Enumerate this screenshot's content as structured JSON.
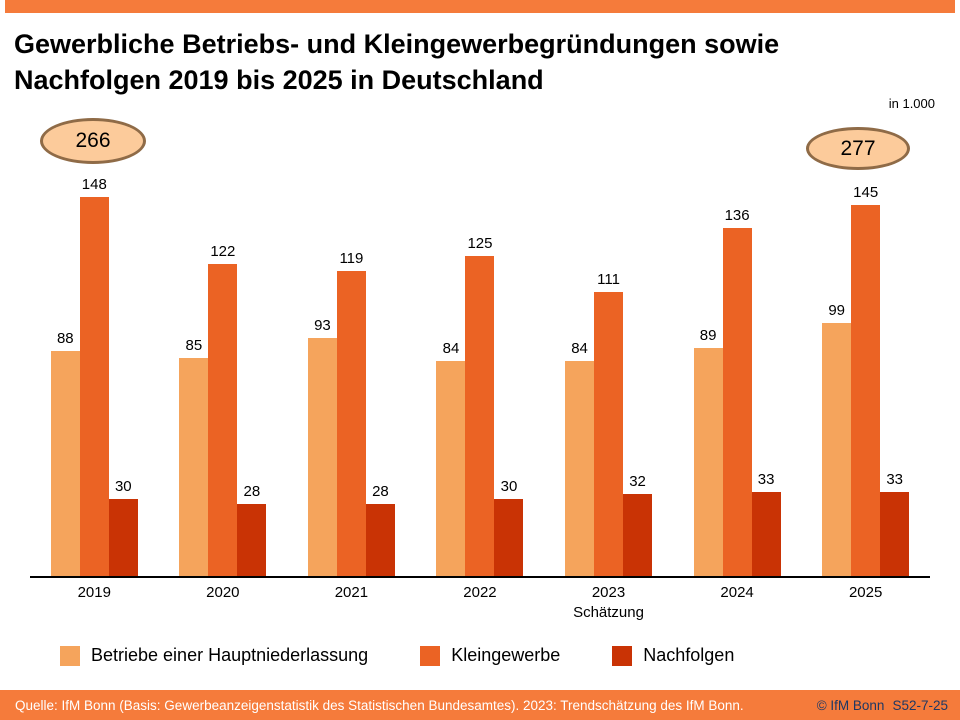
{
  "header": {
    "title_line1": "Gewerbliche Betriebs- und Kleingewerbegründungen sowie",
    "title_line2": "Nachfolgen 2019 bis 2025 in Deutschland",
    "unit_label": "in 1.000",
    "top_bar_color": "#F57B3B"
  },
  "badges": {
    "left_total": "266",
    "right_total": "277",
    "fill_color": "#FCCB9B",
    "border_color": "#8F6B47"
  },
  "chart_data": {
    "type": "bar",
    "title": "Gewerbliche Betriebs- und Kleingewerbegründungen sowie Nachfolgen 2019 bis 2025 in Deutschland",
    "unit": "in 1.000",
    "categories": [
      "2019",
      "2020",
      "2021",
      "2022",
      "2023",
      "2024",
      "2025"
    ],
    "category_sublabels": [
      "",
      "",
      "",
      "",
      "Schätzung",
      "",
      ""
    ],
    "series": [
      {
        "name": "Betriebe einer Hauptniederlassung",
        "color": "#F5A45C",
        "values": [
          88,
          85,
          93,
          84,
          84,
          89,
          99
        ]
      },
      {
        "name": "Kleingewerbe",
        "color": "#EB6324",
        "values": [
          148,
          122,
          119,
          125,
          111,
          136,
          145
        ]
      },
      {
        "name": "Nachfolgen",
        "color": "#C93305",
        "values": [
          30,
          28,
          28,
          30,
          32,
          33,
          33
        ]
      }
    ],
    "group_totals_shown": {
      "2019": 266,
      "2025": 277
    },
    "value_labels": true,
    "ylim": [
      0,
      150
    ],
    "grid": false,
    "legend_position": "bottom"
  },
  "footer": {
    "source": "Quelle: IfM Bonn (Basis: Gewerbeanzeigenstatistik des Statistischen Bundesamtes). 2023: Trendschätzung des IfM Bonn.",
    "copyright": "© IfM Bonn",
    "slide_code": "S52-7-25",
    "bar_color": "#F57B3B"
  }
}
